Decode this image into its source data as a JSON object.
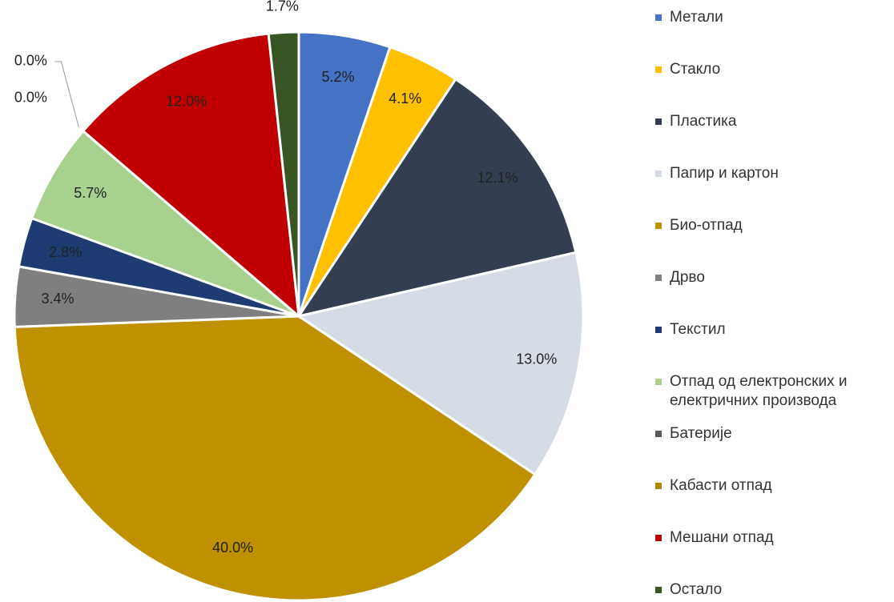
{
  "chart_data": {
    "type": "pie",
    "categories": [
      "Метали",
      "Стакло",
      "Пластика",
      "Папир и картон",
      "Био-отпад",
      "Дрво",
      "Текстил",
      "Отпад од електронских и електричних производа",
      "Батерије",
      "Кабасти отпад",
      "Мешани отпад",
      "Остало"
    ],
    "values": [
      5.2,
      4.1,
      12.1,
      13.0,
      40.0,
      3.4,
      2.8,
      5.7,
      0.0,
      0.0,
      12.0,
      1.7
    ],
    "value_labels": [
      "5.2%",
      "4.1%",
      "12.1%",
      "13.0%",
      "40.0%",
      "3.4%",
      "2.8%",
      "5.7%",
      "0.0%",
      "0.0%",
      "12.0%",
      "1.7%"
    ],
    "colors": [
      "#4472c4",
      "#ffc000",
      "#333f50",
      "#d6dce5",
      "#bf9000",
      "#7f7f7f",
      "#1f3b73",
      "#a9d18e",
      "#595959",
      "#b38600",
      "#c00000",
      "#375623"
    ],
    "legend": "right"
  }
}
